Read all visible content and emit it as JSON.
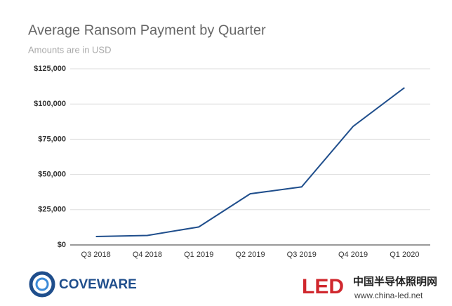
{
  "chart_data": {
    "type": "line",
    "title": "Average Ransom Payment by Quarter",
    "subtitle": "Amounts are in USD",
    "categories": [
      "Q3 2018",
      "Q4 2018",
      "Q1 2019",
      "Q2 2019",
      "Q3 2019",
      "Q4 2019",
      "Q1 2020"
    ],
    "values": [
      5973,
      6733,
      12762,
      36295,
      41198,
      84116,
      111605
    ],
    "color": "#1f4e8c",
    "ylim": [
      0,
      125000
    ],
    "yticks": [
      {
        "value": 0,
        "label": "$0"
      },
      {
        "value": 25000,
        "label": "$25,000"
      },
      {
        "value": 50000,
        "label": "$50,000"
      },
      {
        "value": 75000,
        "label": "$75,000"
      },
      {
        "value": 100000,
        "label": "$100,000"
      },
      {
        "value": 125000,
        "label": "$125,000"
      }
    ],
    "grid": true
  },
  "branding": {
    "left_logo": "COVEWARE",
    "right_logo_mark": "LED",
    "right_logo_name": "中国半导体照明网",
    "right_logo_url": "www.china-led.net"
  }
}
